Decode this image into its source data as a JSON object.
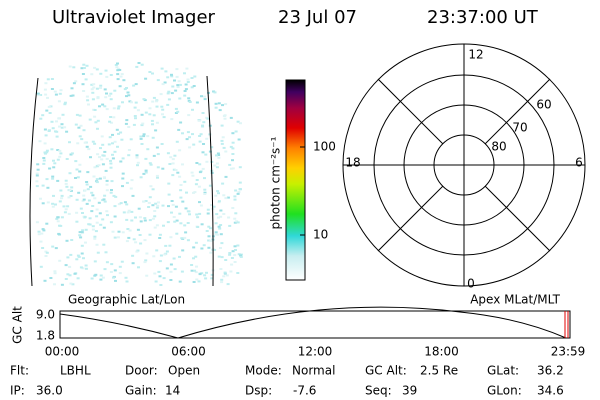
{
  "header": {
    "title": "Ultraviolet Imager",
    "date": "23 Jul 07",
    "time": "23:37:00 UT"
  },
  "colorbar": {
    "label": "photon cm⁻²s⁻¹",
    "ticks": [
      "100",
      "10"
    ]
  },
  "polar": {
    "top": "12",
    "left": "18",
    "right": "6",
    "bottom": "0",
    "rings": [
      "60",
      "70",
      "80"
    ]
  },
  "orbit": {
    "left_label": "Geographic Lat/Lon",
    "right_label": "Apex MLat/MLT",
    "y_label": "GC Alt",
    "yticks": [
      "9.0",
      "1.8"
    ],
    "xticks": [
      "00:00",
      "06:00",
      "12:00",
      "18:00",
      "23:59"
    ]
  },
  "status": {
    "rows": [
      [
        {
          "label": "Flt:",
          "value": "LBHL"
        },
        {
          "label": "Door:",
          "value": "Open"
        },
        {
          "label": "Mode:",
          "value": "Normal"
        },
        {
          "label": "GC Alt:",
          "value": "2.5 Re"
        },
        {
          "label": "GLat:",
          "value": "36.2"
        }
      ],
      [
        {
          "label": "IP:",
          "value": "36.0"
        },
        {
          "label": "Gain:",
          "value": "14"
        },
        {
          "label": "Dsp:",
          "value": "-7.6"
        },
        {
          "label": "Seq:",
          "value": "39"
        },
        {
          "label": "GLon:",
          "value": "34.6"
        }
      ]
    ]
  }
}
